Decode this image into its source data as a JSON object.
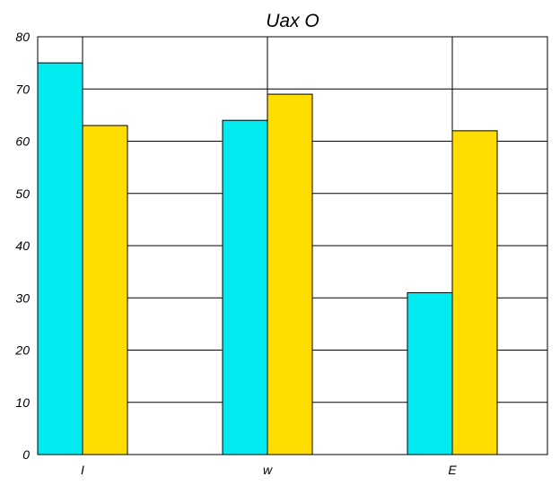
{
  "chart_data": {
    "type": "bar",
    "title": "Uax O",
    "xlabel": "",
    "ylabel": "",
    "categories": [
      "I",
      "w",
      "E"
    ],
    "series": [
      {
        "values": [
          75,
          64,
          31
        ],
        "color": "#00EAF0"
      },
      {
        "values": [
          63,
          69,
          62
        ],
        "color": "#FFDD00"
      }
    ],
    "ylim": [
      0,
      80
    ],
    "yticks": [
      0,
      10,
      20,
      30,
      40,
      50,
      60,
      70,
      80
    ],
    "ytick_labels": [
      "0",
      "10",
      "20",
      "30",
      "40",
      "50",
      "60",
      "70",
      "80"
    ],
    "grid": true,
    "legend": "none"
  }
}
